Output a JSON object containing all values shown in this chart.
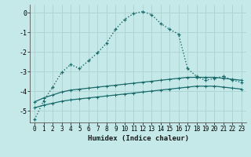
{
  "xlabel": "Humidex (Indice chaleur)",
  "background_color": "#c5e8e8",
  "grid_color": "#aed4d4",
  "line_color": "#1a6b6b",
  "xlim": [
    -0.5,
    23.5
  ],
  "ylim": [
    -5.6,
    0.4
  ],
  "yticks": [
    0,
    -1,
    -2,
    -3,
    -4,
    -5
  ],
  "xticks": [
    0,
    1,
    2,
    3,
    4,
    5,
    6,
    7,
    8,
    9,
    10,
    11,
    12,
    13,
    14,
    15,
    16,
    17,
    18,
    19,
    20,
    21,
    22,
    23
  ],
  "main_x": [
    0,
    1,
    2,
    3,
    4,
    5,
    6,
    7,
    8,
    9,
    10,
    11,
    12,
    13,
    14,
    15,
    16,
    17,
    18,
    19,
    20,
    21,
    22,
    23
  ],
  "main_y": [
    -5.45,
    -4.5,
    -3.8,
    -3.05,
    -2.65,
    -2.85,
    -2.45,
    -2.05,
    -1.55,
    -0.85,
    -0.35,
    -0.05,
    0.05,
    -0.1,
    -0.55,
    -0.85,
    -1.1,
    -2.85,
    -3.25,
    -3.45,
    -3.35,
    -3.25,
    -3.45,
    -3.55
  ],
  "flat1_x": [
    0,
    1,
    2,
    3,
    4,
    5,
    6,
    7,
    8,
    9,
    10,
    11,
    12,
    13,
    14,
    15,
    16,
    17,
    18,
    19,
    20,
    21,
    22,
    23
  ],
  "flat1_y": [
    -4.55,
    -4.35,
    -4.2,
    -4.05,
    -3.95,
    -3.9,
    -3.85,
    -3.8,
    -3.75,
    -3.7,
    -3.65,
    -3.6,
    -3.55,
    -3.5,
    -3.45,
    -3.4,
    -3.35,
    -3.3,
    -3.3,
    -3.3,
    -3.3,
    -3.35,
    -3.4,
    -3.45
  ],
  "flat2_x": [
    0,
    1,
    2,
    3,
    4,
    5,
    6,
    7,
    8,
    9,
    10,
    11,
    12,
    13,
    14,
    15,
    16,
    17,
    18,
    19,
    20,
    21,
    22,
    23
  ],
  "flat2_y": [
    -4.85,
    -4.72,
    -4.62,
    -4.52,
    -4.45,
    -4.4,
    -4.35,
    -4.3,
    -4.25,
    -4.2,
    -4.15,
    -4.1,
    -4.05,
    -4.0,
    -3.95,
    -3.9,
    -3.85,
    -3.8,
    -3.75,
    -3.75,
    -3.75,
    -3.8,
    -3.85,
    -3.9
  ]
}
